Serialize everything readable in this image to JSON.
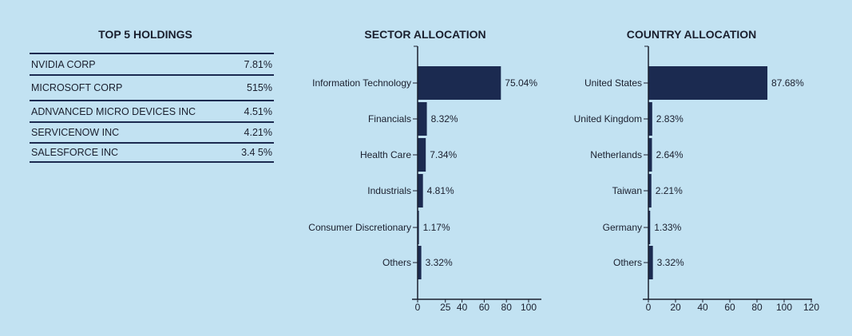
{
  "holdings": {
    "title": "TOP 5 HOLDINGS",
    "rows": [
      {
        "name": "NVIDIA CORP",
        "value": "7.81%"
      },
      {
        "name": "MICROSOFT CORP",
        "value": "515%"
      },
      {
        "name": "ADNVANCED MICRO DEVICES INC",
        "value": "4.51%"
      },
      {
        "name": "SERVICENOW INC",
        "value": "4.21%"
      },
      {
        "name": "SALESFORCE INC",
        "value": "3.4 5%"
      }
    ]
  },
  "colors": {
    "bar": "#1b2a50",
    "background": "#c2e2f2"
  },
  "chart_data": [
    {
      "type": "bar",
      "orientation": "horizontal",
      "title": "SECTOR ALLOCATION",
      "categories": [
        "Information Technology",
        "Financials",
        "Health Care",
        "Industrials",
        "Consumer Discretionary",
        "Others"
      ],
      "values": [
        75.04,
        8.32,
        7.34,
        4.81,
        1.17,
        3.32
      ],
      "labels": [
        "75.04%",
        "8.32%",
        "7.34%",
        "4.81%",
        "1.17%",
        "3.32%"
      ],
      "xticks": [
        0,
        25,
        40,
        60,
        80,
        100
      ],
      "xlim": [
        0,
        111
      ],
      "grid": false
    },
    {
      "type": "bar",
      "orientation": "horizontal",
      "title": "COUNTRY ALLOCATION",
      "categories": [
        "United States",
        "United Kingdom",
        "Netherlands",
        "Taiwan",
        "Germany",
        "Others"
      ],
      "values": [
        87.68,
        2.83,
        2.64,
        2.21,
        1.33,
        3.32
      ],
      "labels": [
        "87.68%",
        "2.83%",
        "2.64%",
        "2.21%",
        "1.33%",
        "3.32%"
      ],
      "xticks": [
        0,
        20,
        40,
        60,
        80,
        100,
        120
      ],
      "xlim": [
        0,
        120
      ],
      "grid": false
    }
  ]
}
